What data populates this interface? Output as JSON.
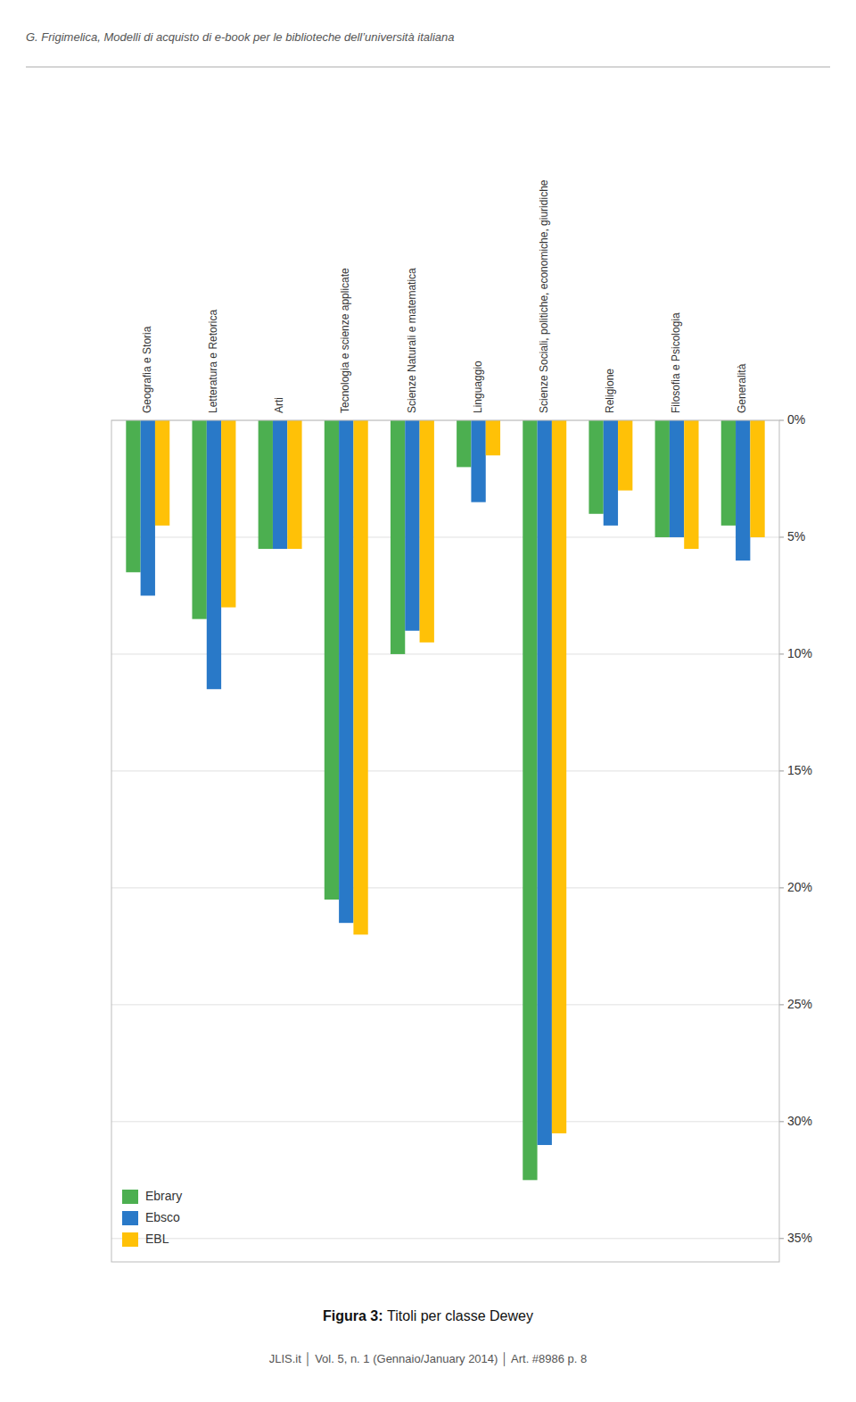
{
  "chart_data": {
    "type": "bar",
    "title": "Figura 3: Titoli per classe Dewey",
    "subtitle": "G. Frigimelica, Modelli di acquisto di e-book per le biblioteche dell’università italiana",
    "annotations": [
      "JLIS.it  │  Vol. 5, n. 1 (Gennaio/January 2014)  │  Art. #8986  p. 8"
    ],
    "categories": [
      "Geografia e Storia",
      "Letteratura e Retorica",
      "Arti",
      "Tecnologia e scienze applicate",
      "Scienze Naturali e matematica",
      "Linguaggio",
      "Scienze Sociali, politiche, economiche, giuridiche",
      "Religione",
      "Filosofia e Psicologia",
      "Generalità"
    ],
    "series": [
      {
        "name": "Ebrary",
        "color": "#4CAF50",
        "values": [
          6.5,
          8.5,
          5.5,
          20.5,
          10.0,
          2.0,
          32.5,
          4.0,
          5.0,
          4.5
        ]
      },
      {
        "name": "Ebsco",
        "color": "#2979C8",
        "values": [
          7.5,
          11.5,
          5.5,
          21.5,
          9.0,
          3.5,
          31.0,
          4.5,
          5.0,
          6.0
        ]
      },
      {
        "name": "EBL",
        "color": "#FFC107",
        "values": [
          4.5,
          8.0,
          5.5,
          22.0,
          9.5,
          1.5,
          30.5,
          3.0,
          5.5,
          5.0
        ]
      }
    ],
    "ylim": [
      36,
      0
    ],
    "yticks": [
      {
        "value": 0,
        "label": "0%"
      },
      {
        "value": 5,
        "label": "5%"
      },
      {
        "value": 10,
        "label": "10%"
      },
      {
        "value": 15,
        "label": "15%"
      },
      {
        "value": 20,
        "label": "20%"
      },
      {
        "value": 25,
        "label": "25%"
      },
      {
        "value": 30,
        "label": "30%"
      },
      {
        "value": 35,
        "label": "35%"
      }
    ],
    "grid": true,
    "legend": "lower left"
  }
}
